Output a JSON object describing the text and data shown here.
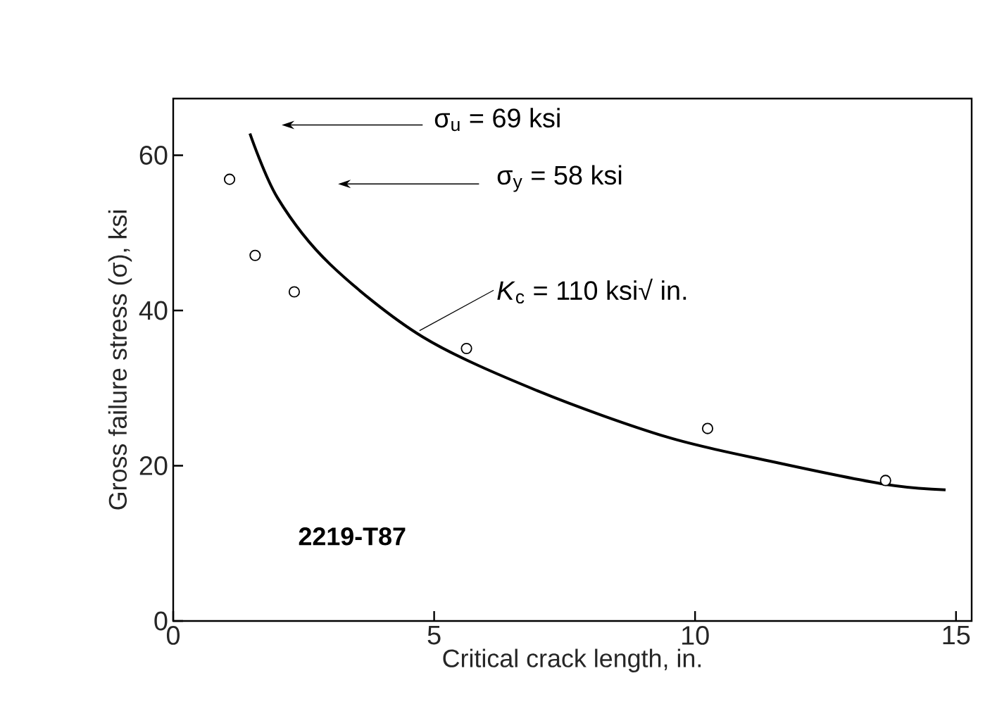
{
  "chart_data": {
    "type": "scatter",
    "xlabel": "Critical crack length, in.",
    "ylabel": "Gross failure stress (σ), ksi",
    "xlim": [
      0,
      15.3
    ],
    "ylim": [
      0,
      67.3
    ],
    "xticks": [
      0,
      5,
      10,
      15
    ],
    "yticks": [
      0,
      20,
      40,
      60
    ],
    "grid": false,
    "annotations": [
      "σ$_{u}$ = 69 ksi",
      "σ$_{y}$ = 58 ksi",
      {
        "text": "*K*$_{c}$ = 110 ksi√ in.",
        "x": 4.72,
        "y": 37.4
      },
      "**2219-T87**"
    ],
    "series": [
      {
        "color": "#000000",
        "marker": "circle",
        "x": [
          1.08,
          1.57,
          2.32,
          5.62,
          10.24,
          13.65
        ],
        "values": [
          56.9,
          47.1,
          42.4,
          35.1,
          24.8,
          18.1
        ]
      },
      {
        "type": "line",
        "color": "#000000",
        "marker": "none",
        "x": [
          1.47,
          2,
          3,
          4.78,
          7,
          9.46,
          11.5,
          13.65,
          14.8
        ],
        "values": [
          62.8,
          54.5,
          46.0,
          36.6,
          29.6,
          23.7,
          20.5,
          17.6,
          16.9
        ]
      }
    ]
  }
}
